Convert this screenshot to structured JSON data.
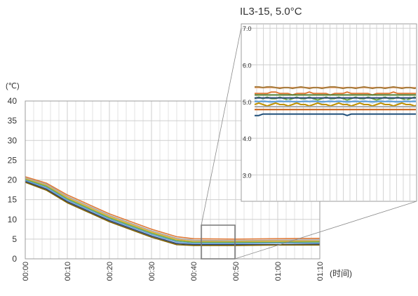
{
  "chart_data": [
    {
      "type": "line",
      "title": "",
      "xlabel": "(时间)",
      "ylabel": "(℃)",
      "x_ticks": [
        "00:00",
        "00:10",
        "00:20",
        "00:30",
        "00:40",
        "00:50",
        "01:00",
        "01:10"
      ],
      "xlim": [
        "00:00",
        "01:10"
      ],
      "y_ticks": [
        "0",
        "5",
        "10",
        "15",
        "20",
        "25",
        "30",
        "35",
        "40"
      ],
      "ylim": [
        0,
        40
      ],
      "grid": true,
      "legend": "none",
      "series": [
        {
          "color": "#e07b39",
          "x": [
            "00:00",
            "00:05",
            "00:10",
            "00:20",
            "00:30",
            "00:36",
            "00:40",
            "00:50",
            "01:00",
            "01:10"
          ],
          "values": [
            20.8,
            19.2,
            16.2,
            11.4,
            7.5,
            5.6,
            5.1,
            5.0,
            5.1,
            5.2
          ]
        },
        {
          "color": "#a8a8a8",
          "x": [
            "00:00",
            "00:05",
            "00:10",
            "00:20",
            "00:30",
            "00:36",
            "00:40",
            "00:50",
            "01:00",
            "01:10"
          ],
          "values": [
            20.5,
            18.9,
            15.8,
            11.0,
            7.1,
            5.2,
            4.7,
            4.6,
            4.7,
            4.8
          ]
        },
        {
          "color": "#e8b23a",
          "x": [
            "00:00",
            "00:05",
            "00:10",
            "00:20",
            "00:30",
            "00:36",
            "00:40",
            "00:50",
            "01:00",
            "01:10"
          ],
          "values": [
            20.3,
            18.6,
            15.5,
            10.7,
            6.8,
            4.9,
            4.4,
            4.4,
            4.5,
            4.5
          ]
        },
        {
          "color": "#70ad47",
          "x": [
            "00:00",
            "00:05",
            "00:10",
            "00:20",
            "00:30",
            "00:36",
            "00:40",
            "00:50",
            "01:00",
            "01:10"
          ],
          "values": [
            20.1,
            18.4,
            15.2,
            10.4,
            6.5,
            4.6,
            4.2,
            4.2,
            4.2,
            4.3
          ]
        },
        {
          "color": "#5b9bd5",
          "x": [
            "00:00",
            "00:05",
            "00:10",
            "00:20",
            "00:30",
            "00:36",
            "00:40",
            "00:50",
            "01:00",
            "01:10"
          ],
          "values": [
            19.9,
            18.1,
            14.9,
            10.1,
            6.2,
            4.3,
            3.9,
            3.9,
            4.0,
            4.0
          ]
        },
        {
          "color": "#264478",
          "x": [
            "00:00",
            "00:05",
            "00:10",
            "00:20",
            "00:30",
            "00:36",
            "00:40",
            "00:50",
            "01:00",
            "01:10"
          ],
          "values": [
            19.6,
            17.7,
            14.5,
            9.7,
            5.8,
            3.9,
            3.6,
            3.6,
            3.6,
            3.7
          ]
        },
        {
          "color": "#7f6000",
          "x": [
            "00:00",
            "00:05",
            "00:10",
            "00:20",
            "00:30",
            "00:36",
            "00:40",
            "00:50",
            "01:00",
            "01:10"
          ],
          "values": [
            19.4,
            17.4,
            14.2,
            9.4,
            5.5,
            3.6,
            3.4,
            3.4,
            3.5,
            3.5
          ]
        }
      ]
    },
    {
      "type": "line",
      "title": "IL3-15, 5.0°C",
      "xlabel": "",
      "ylabel": "",
      "y_ticks": [
        "3.0",
        "4.0",
        "5.0",
        "6.0",
        "7.0"
      ],
      "ylim": [
        2.3,
        7.1
      ],
      "grid": true,
      "legend": "none",
      "series": [
        {
          "color": "#f4b183",
          "values": [
            5.38,
            5.38,
            5.38,
            5.38,
            5.38,
            5.38,
            5.38,
            5.38,
            5.38,
            5.38,
            5.38,
            5.38,
            5.38,
            5.38,
            5.38,
            5.38,
            5.38,
            5.38,
            5.38,
            5.38,
            5.38,
            5.38,
            5.38,
            5.38,
            5.38,
            5.38,
            5.38,
            5.38,
            5.38,
            5.38,
            5.38,
            5.38,
            5.38,
            5.38,
            5.38,
            5.38,
            5.38,
            5.38,
            5.38,
            5.38
          ]
        },
        {
          "color": "#a5793a",
          "values": [
            5.4,
            5.4,
            5.38,
            5.4,
            5.4,
            5.38,
            5.36,
            5.38,
            5.38,
            5.36,
            5.38,
            5.4,
            5.38,
            5.36,
            5.38,
            5.38,
            5.36,
            5.38,
            5.4,
            5.4,
            5.38,
            5.36,
            5.38,
            5.38,
            5.36,
            5.38,
            5.4,
            5.38,
            5.36,
            5.38,
            5.38,
            5.36,
            5.38,
            5.4,
            5.38,
            5.36,
            5.38,
            5.38,
            5.36,
            5.38
          ]
        },
        {
          "color": "#e07b39",
          "values": [
            5.22,
            5.22,
            5.22,
            5.22,
            5.26,
            5.26,
            5.22,
            5.22,
            5.22,
            5.18,
            5.22,
            5.22,
            5.22,
            5.26,
            5.22,
            5.22,
            5.22,
            5.22,
            5.18,
            5.22,
            5.22,
            5.22,
            5.26,
            5.22,
            5.22,
            5.22,
            5.22,
            5.22,
            5.18,
            5.22,
            5.22,
            5.22,
            5.22,
            5.26,
            5.22,
            5.22,
            5.22,
            5.22,
            5.22,
            5.22
          ]
        },
        {
          "color": "#548235",
          "values": [
            5.18,
            5.18,
            5.18,
            5.18,
            5.18,
            5.18,
            5.18,
            5.18,
            5.18,
            5.18,
            5.18,
            5.18,
            5.18,
            5.18,
            5.18,
            5.18,
            5.18,
            5.18,
            5.18,
            5.18,
            5.18,
            5.18,
            5.18,
            5.18,
            5.18,
            5.18,
            5.18,
            5.18,
            5.18,
            5.18,
            5.18,
            5.18,
            5.18,
            5.18,
            5.18,
            5.18,
            5.18,
            5.18,
            5.18,
            5.18
          ]
        },
        {
          "color": "#70ad47",
          "values": [
            5.08,
            5.12,
            5.08,
            5.12,
            5.08,
            5.08,
            5.12,
            5.08,
            5.04,
            5.08,
            5.12,
            5.08,
            5.08,
            5.12,
            5.08,
            5.04,
            5.08,
            5.12,
            5.08,
            5.08,
            5.12,
            5.08,
            5.04,
            5.08,
            5.12,
            5.08,
            5.08,
            5.12,
            5.08,
            5.04,
            5.08,
            5.12,
            5.08,
            5.08,
            5.12,
            5.08,
            5.04,
            5.08,
            5.12,
            5.08
          ]
        },
        {
          "color": "#264478",
          "values": [
            5.1,
            5.1,
            5.1,
            5.1,
            5.1,
            5.1,
            5.1,
            5.1,
            5.1,
            5.1,
            5.1,
            5.1,
            5.1,
            5.1,
            5.1,
            5.1,
            5.1,
            5.1,
            5.1,
            5.1,
            5.1,
            5.1,
            5.1,
            5.1,
            5.1,
            5.1,
            5.1,
            5.1,
            5.1,
            5.1,
            5.1,
            5.1,
            5.1,
            5.1,
            5.1,
            5.1,
            5.1,
            5.1,
            5.1,
            5.1
          ]
        },
        {
          "color": "#bdd7ee",
          "values": [
            5.04,
            5.0,
            5.04,
            5.0,
            4.96,
            5.0,
            5.04,
            5.0,
            5.04,
            5.0,
            4.96,
            5.0,
            5.04,
            5.0,
            5.04,
            5.0,
            4.96,
            5.0,
            5.04,
            5.0,
            5.04,
            5.0,
            4.96,
            5.0,
            5.04,
            5.0,
            5.04,
            5.0,
            4.96,
            5.0,
            5.04,
            5.0,
            5.04,
            5.0,
            4.96,
            5.0,
            5.04,
            5.0,
            5.04,
            5.0
          ]
        },
        {
          "color": "#5b9bd5",
          "values": [
            5.0,
            5.0,
            5.0,
            5.0,
            5.0,
            5.0,
            5.0,
            5.0,
            5.0,
            5.0,
            5.0,
            5.0,
            5.0,
            5.0,
            5.0,
            5.0,
            5.0,
            5.0,
            5.0,
            5.0,
            5.0,
            5.0,
            5.0,
            5.0,
            5.0,
            5.0,
            5.0,
            5.0,
            5.0,
            5.0,
            5.0,
            5.0,
            5.0,
            5.0,
            5.0,
            5.0,
            5.0,
            5.0,
            5.0,
            5.0
          ]
        },
        {
          "color": "#bf9000",
          "values": [
            4.92,
            4.96,
            4.92,
            4.88,
            4.92,
            4.96,
            4.92,
            4.92,
            4.88,
            4.92,
            4.96,
            4.92,
            4.92,
            4.88,
            4.92,
            4.96,
            4.92,
            4.92,
            4.88,
            4.92,
            4.96,
            4.92,
            4.92,
            4.88,
            4.92,
            4.96,
            4.92,
            4.92,
            4.88,
            4.92,
            4.96,
            4.92,
            4.92,
            4.88,
            4.92,
            4.96,
            4.92,
            4.92,
            4.88,
            4.92
          ]
        },
        {
          "color": "#a8a8a8",
          "values": [
            4.86,
            4.86,
            4.86,
            4.86,
            4.86,
            4.86,
            4.86,
            4.86,
            4.86,
            4.86,
            4.86,
            4.86,
            4.86,
            4.86,
            4.86,
            4.86,
            4.86,
            4.86,
            4.86,
            4.86,
            4.86,
            4.86,
            4.86,
            4.86,
            4.86,
            4.86,
            4.86,
            4.86,
            4.86,
            4.86,
            4.86,
            4.86,
            4.86,
            4.86,
            4.86,
            4.86,
            4.86,
            4.86,
            4.86,
            4.86
          ]
        },
        {
          "color": "#c55a11",
          "values": [
            4.78,
            4.78,
            4.78,
            4.78,
            4.78,
            4.78,
            4.78,
            4.78,
            4.78,
            4.78,
            4.78,
            4.78,
            4.78,
            4.78,
            4.78,
            4.78,
            4.78,
            4.78,
            4.78,
            4.78,
            4.78,
            4.78,
            4.78,
            4.78,
            4.78,
            4.78,
            4.78,
            4.78,
            4.78,
            4.78,
            4.78,
            4.78,
            4.78,
            4.78,
            4.78,
            4.78,
            4.78,
            4.78,
            4.78,
            4.78
          ]
        },
        {
          "color": "#1f4e79",
          "values": [
            4.62,
            4.62,
            4.66,
            4.66,
            4.66,
            4.66,
            4.66,
            4.66,
            4.66,
            4.66,
            4.66,
            4.66,
            4.66,
            4.66,
            4.66,
            4.66,
            4.66,
            4.66,
            4.66,
            4.66,
            4.66,
            4.66,
            4.62,
            4.66,
            4.66,
            4.66,
            4.66,
            4.66,
            4.66,
            4.66,
            4.66,
            4.66,
            4.66,
            4.66,
            4.66,
            4.66,
            4.66,
            4.66,
            4.66,
            4.66
          ]
        }
      ]
    }
  ]
}
